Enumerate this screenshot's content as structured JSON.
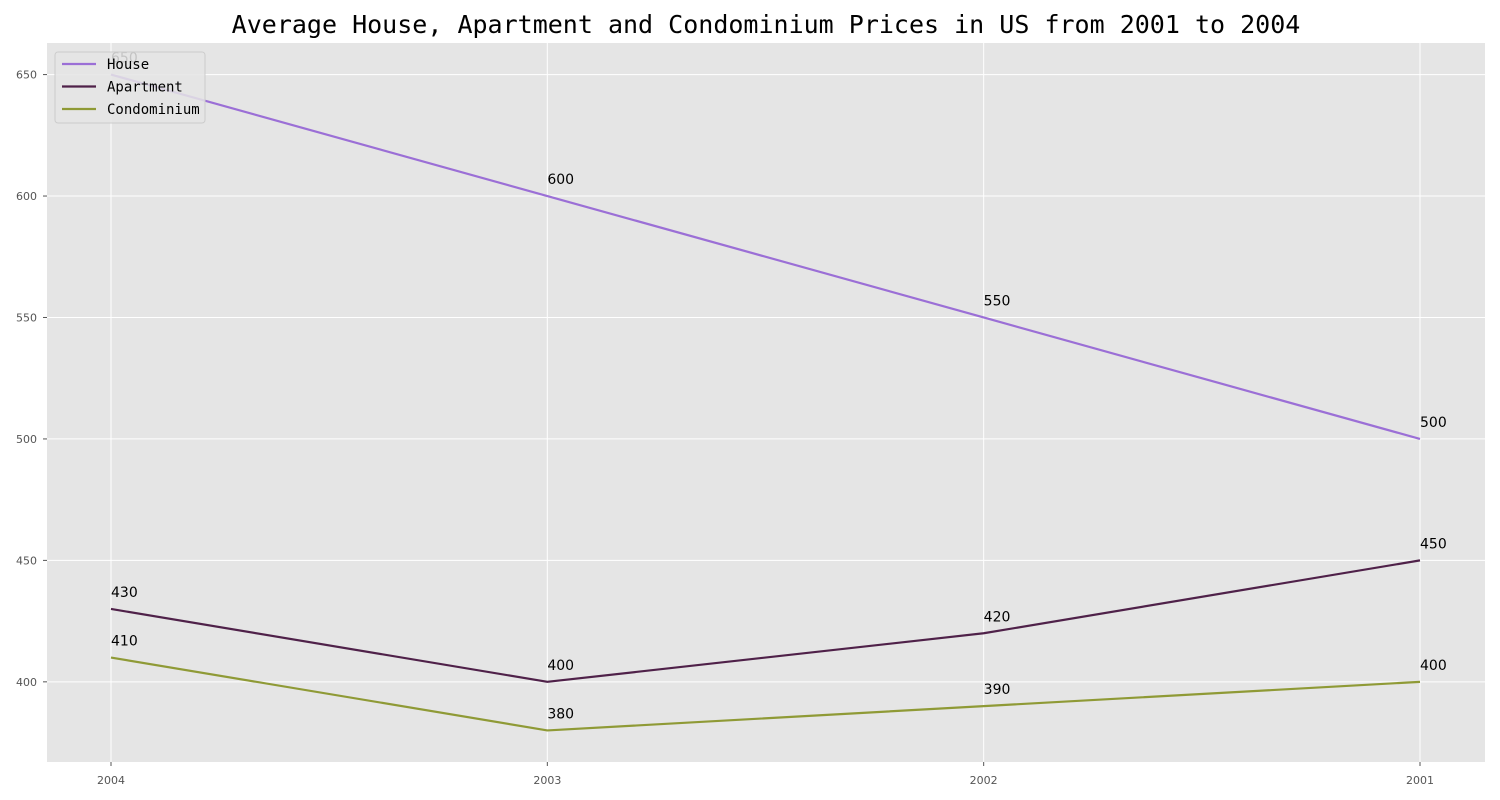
{
  "chart_data": {
    "type": "line",
    "title": "Average House, Apartment and Condominium Prices in US from 2001 to 2004",
    "xlabel": "",
    "ylabel": "",
    "categories": [
      "2004",
      "2003",
      "2002",
      "2001"
    ],
    "ylim": [
      367,
      663
    ],
    "yticks": [
      400,
      450,
      500,
      550,
      600,
      650
    ],
    "grid": true,
    "legend_position": "top-left",
    "background_color": "#e5e5e5",
    "series": [
      {
        "name": "House",
        "values": [
          650,
          600,
          550,
          500
        ],
        "color": "#9b6fd6"
      },
      {
        "name": "Apartment",
        "values": [
          430,
          400,
          420,
          450
        ],
        "color": "#4f2149"
      },
      {
        "name": "Condominium",
        "values": [
          410,
          380,
          390,
          400
        ],
        "color": "#8f9a36"
      }
    ]
  }
}
